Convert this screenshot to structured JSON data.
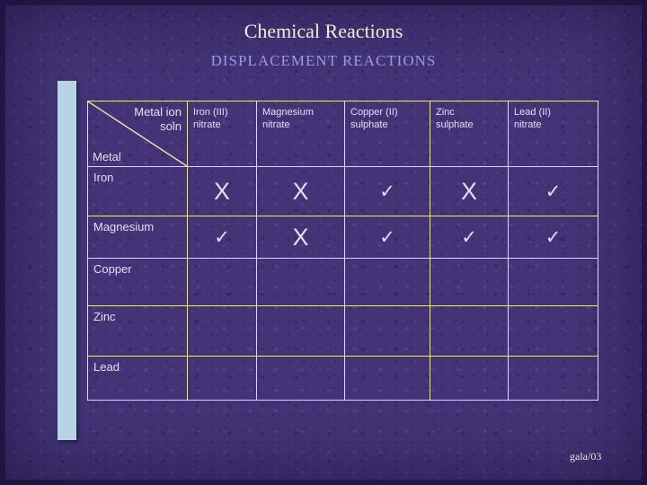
{
  "title": "Chemical Reactions",
  "subtitle": "DISPLACEMENT REACTIONS",
  "footer": "gala/03",
  "colors": {
    "background": "#443477",
    "table_border": "#e9e3a9",
    "title_text": "#f2ecdc",
    "subtitle_text": "#9a99e6",
    "table_text": "#e3def2",
    "mark_text": "#d6e6f5",
    "accent_bar": "#b8d2e6"
  },
  "table": {
    "corner": {
      "top_line1": "Metal ion",
      "top_line2": "soln",
      "bottom": "Metal"
    },
    "columns": [
      "Iron (III)\nnitrate",
      "Magnesium\nnitrate",
      "Copper (II)\nsulphate",
      "Zinc\nsulphate",
      "Lead (II)\nnitrate"
    ],
    "rows": [
      {
        "label": "Iron",
        "cells": [
          "X",
          "X",
          "✓",
          "X",
          "✓"
        ]
      },
      {
        "label": "Magnesium",
        "cells": [
          "✓",
          "X",
          "✓",
          "✓",
          "✓"
        ]
      },
      {
        "label": "Copper",
        "cells": [
          "",
          "",
          "",
          "",
          ""
        ]
      },
      {
        "label": "Zinc",
        "cells": [
          "",
          "",
          "",
          "",
          ""
        ]
      },
      {
        "label": "Lead",
        "cells": [
          "",
          "",
          "",
          "",
          ""
        ]
      }
    ]
  }
}
